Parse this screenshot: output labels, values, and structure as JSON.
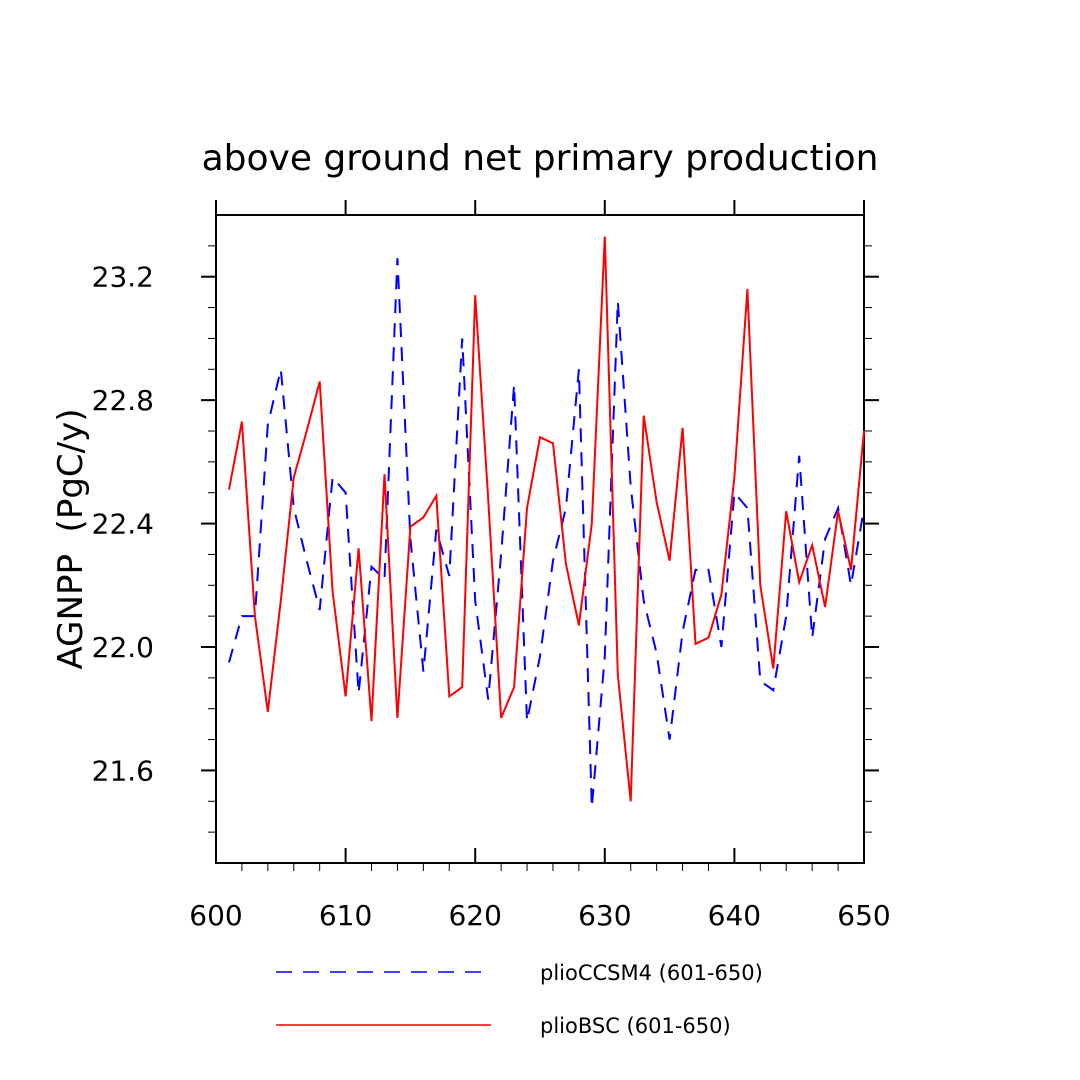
{
  "chart_data": {
    "type": "line",
    "title": "above ground net primary production",
    "xlabel": "",
    "ylabel": "AGNPP  (PgC/y)",
    "xlim": [
      600,
      650
    ],
    "ylim": [
      21.3,
      23.4
    ],
    "xticks": [
      600,
      610,
      620,
      630,
      640,
      650
    ],
    "xtick_labels": [
      "600",
      "610",
      "620",
      "630",
      "640",
      "650"
    ],
    "yticks": [
      21.6,
      22.0,
      22.4,
      22.8,
      23.2
    ],
    "ytick_labels": [
      "21.6",
      "22.0",
      "22.4",
      "22.8",
      "23.2"
    ],
    "x": [
      601,
      602,
      603,
      604,
      605,
      606,
      607,
      608,
      609,
      610,
      611,
      612,
      613,
      614,
      615,
      616,
      617,
      618,
      619,
      620,
      621,
      622,
      623,
      624,
      625,
      626,
      627,
      628,
      629,
      630,
      631,
      632,
      633,
      634,
      635,
      636,
      637,
      638,
      639,
      640,
      641,
      642,
      643,
      644,
      645,
      646,
      647,
      648,
      649,
      650
    ],
    "series": [
      {
        "name": "plioCCSM4 (601-650)",
        "color": "#0000ff",
        "dash": "dashed",
        "values": [
          21.95,
          22.1,
          22.1,
          22.72,
          22.9,
          22.45,
          22.28,
          22.12,
          22.55,
          22.5,
          21.85,
          22.26,
          22.22,
          23.26,
          22.35,
          21.92,
          22.38,
          22.23,
          23.0,
          22.15,
          21.83,
          22.3,
          22.85,
          21.76,
          21.97,
          22.28,
          22.45,
          22.9,
          21.48,
          21.97,
          23.12,
          22.52,
          22.15,
          21.98,
          21.7,
          22.05,
          22.25,
          22.25,
          22.0,
          22.5,
          22.45,
          21.89,
          21.86,
          22.1,
          22.62,
          22.03,
          22.35,
          22.45,
          22.2,
          22.45
        ]
      },
      {
        "name": "plioBSC (601-650)",
        "color": "#ff0000",
        "dash": "solid",
        "values": [
          22.51,
          22.73,
          22.1,
          21.79,
          22.15,
          22.55,
          22.7,
          22.86,
          22.18,
          21.84,
          22.32,
          21.76,
          22.56,
          21.77,
          22.39,
          22.42,
          22.49,
          21.84,
          21.87,
          23.14,
          22.48,
          21.77,
          21.87,
          22.45,
          22.68,
          22.66,
          22.27,
          22.07,
          22.4,
          23.33,
          21.91,
          21.5,
          22.75,
          22.47,
          22.28,
          22.71,
          22.01,
          22.03,
          22.17,
          22.55,
          23.16,
          22.2,
          21.93,
          22.44,
          22.21,
          22.33,
          22.13,
          22.44,
          22.25,
          22.7
        ]
      }
    ],
    "legend": {
      "position": "bottom",
      "entries": [
        "plioCCSM4 (601-650)",
        "plioBSC (601-650)"
      ]
    }
  }
}
